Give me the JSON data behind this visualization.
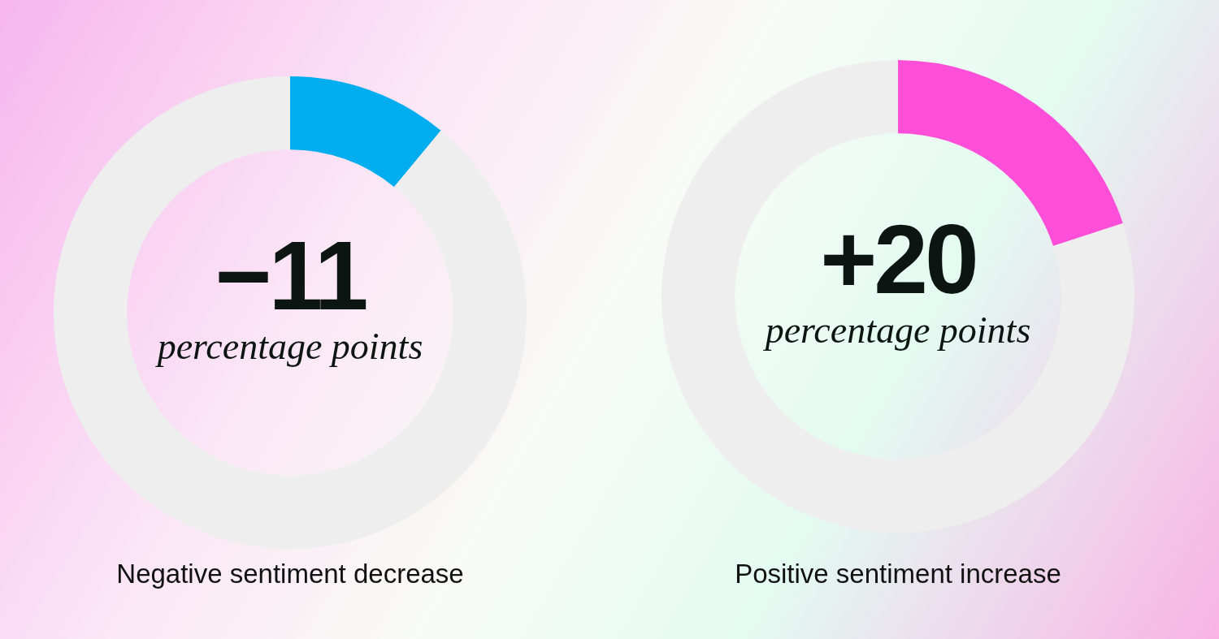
{
  "chart_data": [
    {
      "type": "donut",
      "title": "Negative sentiment decrease",
      "categories": [
        null,
        null
      ],
      "values": [
        11,
        89
      ],
      "colors": [
        "#00aeef",
        "#eeeeee"
      ],
      "annotations": [
        "−11",
        "percentage points"
      ]
    },
    {
      "type": "donut",
      "title": "Positive sentiment increase",
      "categories": [
        null,
        null
      ],
      "values": [
        20,
        80
      ],
      "colors": [
        "#ff4fd8",
        "#eeeeee"
      ],
      "annotations": [
        "+20",
        "percentage points"
      ]
    }
  ]
}
